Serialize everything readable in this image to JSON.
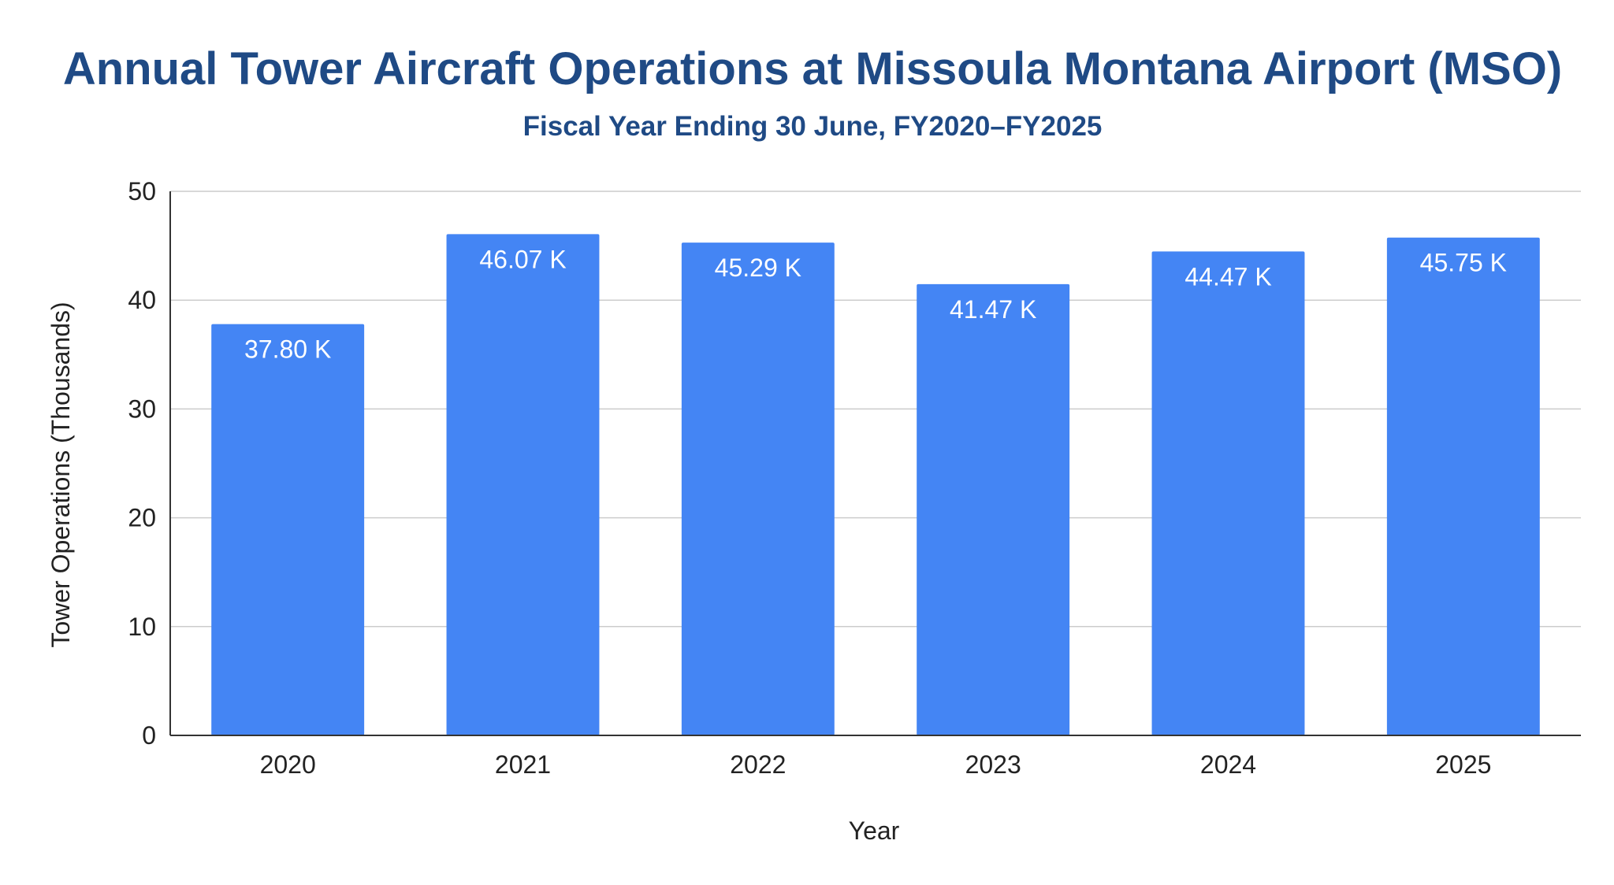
{
  "chart_data": {
    "type": "bar",
    "title": "Annual Tower Aircraft Operations at Missoula Montana Airport (MSO)",
    "subtitle": "Fiscal Year Ending 30 June, FY2020–FY2025",
    "xlabel": "Year",
    "ylabel": "Tower Operations (Thousands)",
    "categories": [
      "2020",
      "2021",
      "2022",
      "2023",
      "2024",
      "2025"
    ],
    "values": [
      37.8,
      46.07,
      45.29,
      41.47,
      44.47,
      45.75
    ],
    "data_labels": [
      "37.80 K",
      "46.07 K",
      "45.29 K",
      "41.47 K",
      "44.47 K",
      "45.75 K"
    ],
    "ylim": [
      0,
      50
    ],
    "yticks": [
      0,
      10,
      20,
      30,
      40,
      50
    ],
    "grid": true,
    "legend": "none",
    "colors": {
      "bar": "#4485f4",
      "title": "#1f4a85",
      "data_label": "#ffffff"
    }
  }
}
